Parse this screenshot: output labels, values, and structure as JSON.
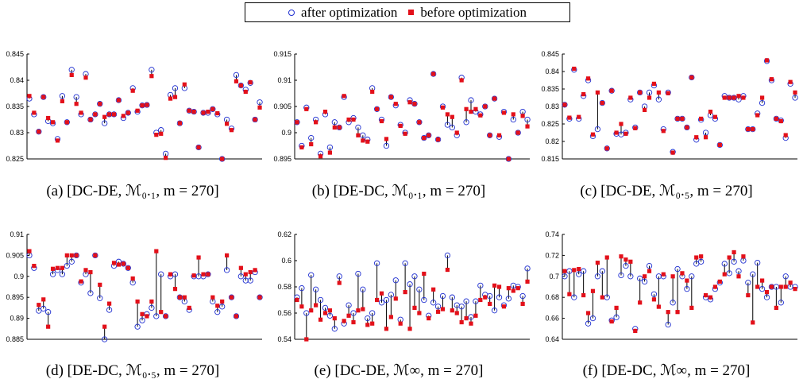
{
  "legend": {
    "after_label": "after optimization",
    "before_label": "before optimization",
    "after_color": "#1f2fd0",
    "before_color": "#e3101a"
  },
  "chart_data": [
    {
      "type": "scatter",
      "caption": "(a) [DC-DE, ℳ₀.₁, m = 270]",
      "ylim": [
        0.825,
        0.845
      ],
      "yticks": [
        "0.825",
        "0.83",
        "0.835",
        "0.84",
        "0.845"
      ],
      "x": [
        1,
        2,
        3,
        4,
        5,
        6,
        7,
        8,
        9,
        10,
        11,
        12,
        13,
        14,
        15,
        16,
        17,
        18,
        19,
        20,
        21,
        22,
        23,
        24,
        25,
        26,
        27,
        28,
        29,
        30,
        31,
        32,
        33,
        34,
        35,
        36,
        37,
        38,
        39,
        40,
        41,
        42,
        43,
        44,
        45,
        46,
        47,
        48,
        49,
        50
      ],
      "series": [
        {
          "name": "after optimization",
          "values": [
            0.8365,
            0.8335,
            0.8302,
            0.8368,
            0.8322,
            0.8318,
            0.8288,
            0.837,
            0.832,
            0.842,
            0.8368,
            0.8335,
            0.8412,
            0.8325,
            0.8335,
            0.8355,
            0.8318,
            0.8335,
            0.8335,
            0.8362,
            0.8328,
            0.8338,
            0.8385,
            0.834,
            0.8352,
            0.8353,
            0.842,
            0.83,
            0.8305,
            0.826,
            0.8372,
            0.8385,
            0.8318,
            0.8385,
            0.8342,
            0.834,
            0.8272,
            0.8338,
            0.8338,
            0.8345,
            0.8335,
            0.825,
            0.8325,
            0.8308,
            0.841,
            0.839,
            0.8382,
            0.8395,
            0.8325,
            0.8358
          ]
        },
        {
          "name": "before optimization",
          "values": [
            0.837,
            0.8338,
            0.8302,
            0.8368,
            0.8328,
            0.832,
            0.8285,
            0.836,
            0.832,
            0.841,
            0.8355,
            0.8338,
            0.8405,
            0.8325,
            0.8335,
            0.8355,
            0.833,
            0.8335,
            0.8335,
            0.8362,
            0.8332,
            0.8338,
            0.838,
            0.8342,
            0.8352,
            0.8353,
            0.8408,
            0.8296,
            0.8298,
            0.8252,
            0.8365,
            0.8368,
            0.8318,
            0.8392,
            0.8342,
            0.834,
            0.8272,
            0.8338,
            0.834,
            0.8345,
            0.8337,
            0.825,
            0.8317,
            0.8305,
            0.8398,
            0.839,
            0.8378,
            0.8396,
            0.8325,
            0.8348
          ]
        }
      ]
    },
    {
      "type": "scatter",
      "caption": "(b) [DE-DC, ℳ₀.₁, m = 270]",
      "ylim": [
        0.895,
        0.915
      ],
      "yticks": [
        "0.895",
        "0.9",
        "0.905",
        "0.91",
        "0.915"
      ],
      "x": [
        1,
        2,
        3,
        4,
        5,
        6,
        7,
        8,
        9,
        10,
        11,
        12,
        13,
        14,
        15,
        16,
        17,
        18,
        19,
        20,
        21,
        22,
        23,
        24,
        25,
        26,
        27,
        28,
        29,
        30,
        31,
        32,
        33,
        34,
        35,
        36,
        37,
        38,
        39,
        40,
        41,
        42,
        43,
        44,
        45,
        46,
        47,
        48,
        49,
        50
      ],
      "series": [
        {
          "name": "after optimization",
          "values": [
            0.902,
            0.8975,
            0.9048,
            0.899,
            0.9025,
            0.896,
            0.9035,
            0.8972,
            0.902,
            0.901,
            0.9068,
            0.902,
            0.9028,
            0.901,
            0.8995,
            0.8987,
            0.9085,
            0.9045,
            0.9025,
            0.8975,
            0.9068,
            0.9052,
            0.9015,
            0.9,
            0.9062,
            0.9055,
            0.902,
            0.899,
            0.8995,
            0.9112,
            0.8987,
            0.905,
            0.9015,
            0.901,
            0.8995,
            0.9105,
            0.902,
            0.9062,
            0.904,
            0.9035,
            0.905,
            0.8995,
            0.9065,
            0.8992,
            0.904,
            0.895,
            0.9025,
            0.9,
            0.904,
            0.9025
          ]
        },
        {
          "name": "before optimization",
          "values": [
            0.902,
            0.8972,
            0.9045,
            0.8978,
            0.902,
            0.8955,
            0.904,
            0.8962,
            0.901,
            0.901,
            0.907,
            0.9025,
            0.9025,
            0.8995,
            0.8985,
            0.8983,
            0.9078,
            0.9045,
            0.9022,
            0.8988,
            0.9068,
            0.9055,
            0.9013,
            0.8998,
            0.9058,
            0.9055,
            0.902,
            0.899,
            0.8995,
            0.9112,
            0.8987,
            0.9048,
            0.9035,
            0.903,
            0.9,
            0.91,
            0.9045,
            0.904,
            0.9045,
            0.9033,
            0.905,
            0.8995,
            0.9065,
            0.8995,
            0.9038,
            0.895,
            0.9035,
            0.9,
            0.9032,
            0.9012
          ]
        }
      ]
    },
    {
      "type": "scatter",
      "caption": "(c) [DC-DE, ℳ₀.₅, m = 270]",
      "ylim": [
        0.815,
        0.845
      ],
      "yticks": [
        "0.815",
        "0.82",
        "0.825",
        "0.83",
        "0.835",
        "0.84",
        "0.845"
      ],
      "x": [
        1,
        2,
        3,
        4,
        5,
        6,
        7,
        8,
        9,
        10,
        11,
        12,
        13,
        14,
        15,
        16,
        17,
        18,
        19,
        20,
        21,
        22,
        23,
        24,
        25,
        26,
        27,
        28,
        29,
        30,
        31,
        32,
        33,
        34,
        35,
        36,
        37,
        38,
        39,
        40,
        41,
        42,
        43,
        44,
        45,
        46,
        47,
        48,
        49,
        50
      ],
      "series": [
        {
          "name": "after optimization",
          "values": [
            0.8305,
            0.8265,
            0.8405,
            0.8265,
            0.833,
            0.8375,
            0.8215,
            0.8235,
            0.831,
            0.818,
            0.8345,
            0.8222,
            0.822,
            0.8225,
            0.832,
            0.824,
            0.834,
            0.83,
            0.834,
            0.836,
            0.832,
            0.8235,
            0.834,
            0.817,
            0.8265,
            0.8265,
            0.824,
            0.8383,
            0.8205,
            0.8262,
            0.8225,
            0.8275,
            0.8265,
            0.819,
            0.833,
            0.8325,
            0.8325,
            0.832,
            0.833,
            0.8235,
            0.8235,
            0.828,
            0.831,
            0.843,
            0.8375,
            0.8265,
            0.826,
            0.821,
            0.8365,
            0.8325
          ]
        },
        {
          "name": "before optimization",
          "values": [
            0.8305,
            0.8268,
            0.8408,
            0.827,
            0.8335,
            0.838,
            0.822,
            0.834,
            0.831,
            0.818,
            0.8345,
            0.8225,
            0.825,
            0.8222,
            0.8325,
            0.8238,
            0.834,
            0.829,
            0.8325,
            0.8365,
            0.834,
            0.823,
            0.8338,
            0.8168,
            0.8265,
            0.8265,
            0.824,
            0.8383,
            0.8212,
            0.8265,
            0.8212,
            0.8285,
            0.827,
            0.819,
            0.8325,
            0.8325,
            0.8325,
            0.833,
            0.8325,
            0.8235,
            0.8235,
            0.8275,
            0.8325,
            0.8432,
            0.8378,
            0.8265,
            0.8258,
            0.8218,
            0.837,
            0.834
          ]
        }
      ]
    },
    {
      "type": "scatter",
      "caption": "(d) [DE-DC, ℳ₀.₅, m = 270]",
      "ylim": [
        0.885,
        0.91
      ],
      "yticks": [
        "0.885",
        "0.89",
        "0.895",
        "0.9",
        "0.905",
        "0.91"
      ],
      "x": [
        1,
        2,
        3,
        4,
        5,
        6,
        7,
        8,
        9,
        10,
        11,
        12,
        13,
        14,
        15,
        16,
        17,
        18,
        19,
        20,
        21,
        22,
        23,
        24,
        25,
        26,
        27,
        28,
        29,
        30,
        31,
        32,
        33,
        34,
        35,
        36,
        37,
        38,
        39,
        40,
        41,
        42,
        43,
        44,
        45,
        46,
        47,
        48,
        49,
        50
      ],
      "series": [
        {
          "name": "after optimization",
          "values": [
            0.905,
            0.902,
            0.8918,
            0.8923,
            0.8915,
            0.9005,
            0.9015,
            0.9005,
            0.9025,
            0.9035,
            0.905,
            0.8985,
            0.9005,
            0.896,
            0.905,
            0.8948,
            0.885,
            0.892,
            0.9025,
            0.9035,
            0.903,
            0.902,
            0.8985,
            0.888,
            0.8895,
            0.891,
            0.8925,
            0.8905,
            0.9005,
            0.8905,
            0.9,
            0.9005,
            0.895,
            0.894,
            0.892,
            0.9,
            0.9,
            0.9,
            0.9005,
            0.894,
            0.8915,
            0.8928,
            0.9015,
            0.895,
            0.8905,
            0.9,
            0.899,
            0.899,
            0.901,
            0.895
          ]
        },
        {
          "name": "before optimization",
          "values": [
            0.906,
            0.9025,
            0.8932,
            0.8945,
            0.888,
            0.9018,
            0.902,
            0.902,
            0.905,
            0.905,
            0.905,
            0.8988,
            0.9015,
            0.901,
            0.905,
            0.898,
            0.888,
            0.8935,
            0.9032,
            0.9028,
            0.903,
            0.902,
            0.8995,
            0.894,
            0.891,
            0.8905,
            0.894,
            0.906,
            0.8915,
            0.8905,
            0.9005,
            0.897,
            0.895,
            0.895,
            0.8925,
            0.9002,
            0.9045,
            0.9005,
            0.9005,
            0.895,
            0.893,
            0.894,
            0.905,
            0.895,
            0.8905,
            0.902,
            0.9005,
            0.901,
            0.9015,
            0.895
          ]
        }
      ]
    },
    {
      "type": "scatter",
      "caption": "(e) [DC-DE, ℳ∞, m = 270]",
      "ylim": [
        0.54,
        0.62
      ],
      "yticks": [
        "0.54",
        "0.56",
        "0.58",
        "0.6",
        "0.62"
      ],
      "x": [
        1,
        2,
        3,
        4,
        5,
        6,
        7,
        8,
        9,
        10,
        11,
        12,
        13,
        14,
        15,
        16,
        17,
        18,
        19,
        20,
        21,
        22,
        23,
        24,
        25,
        26,
        27,
        28,
        29,
        30,
        31,
        32,
        33,
        34,
        35,
        36,
        37,
        38,
        39,
        40,
        41,
        42,
        43,
        44,
        45,
        46,
        47,
        48,
        49,
        50
      ],
      "series": [
        {
          "name": "after optimization",
          "values": [
            0.572,
            0.579,
            0.56,
            0.589,
            0.578,
            0.57,
            0.564,
            0.558,
            0.548,
            0.588,
            0.552,
            0.566,
            0.56,
            0.59,
            0.578,
            0.556,
            0.56,
            0.598,
            0.568,
            0.57,
            0.574,
            0.585,
            0.555,
            0.598,
            0.582,
            0.588,
            0.578,
            0.57,
            0.558,
            0.568,
            0.565,
            0.573,
            0.604,
            0.572,
            0.566,
            0.565,
            0.569,
            0.557,
            0.569,
            0.581,
            0.574,
            0.573,
            0.562,
            0.572,
            0.566,
            0.571,
            0.581,
            0.58,
            0.573,
            0.594
          ]
        },
        {
          "name": "before optimization",
          "values": [
            0.57,
            0.565,
            0.54,
            0.562,
            0.566,
            0.555,
            0.56,
            0.562,
            0.556,
            0.583,
            0.554,
            0.558,
            0.553,
            0.562,
            0.563,
            0.551,
            0.552,
            0.57,
            0.575,
            0.548,
            0.557,
            0.571,
            0.552,
            0.576,
            0.548,
            0.564,
            0.56,
            0.59,
            0.556,
            0.578,
            0.561,
            0.563,
            0.593,
            0.562,
            0.56,
            0.553,
            0.556,
            0.552,
            0.558,
            0.57,
            0.572,
            0.567,
            0.581,
            0.58,
            0.565,
            0.579,
            0.577,
            0.579,
            0.567,
            0.584
          ]
        }
      ]
    },
    {
      "type": "scatter",
      "caption": "(f) [DE-DC, ℳ∞, m = 270]",
      "ylim": [
        0.64,
        0.74
      ],
      "yticks": [
        "0.64",
        "0.66",
        "0.68",
        "0.7",
        "0.72",
        "0.74"
      ],
      "x": [
        1,
        2,
        3,
        4,
        5,
        6,
        7,
        8,
        9,
        10,
        11,
        12,
        13,
        14,
        15,
        16,
        17,
        18,
        19,
        20,
        21,
        22,
        23,
        24,
        25,
        26,
        27,
        28,
        29,
        30,
        31,
        32,
        33,
        34,
        35,
        36,
        37,
        38,
        39,
        40,
        41,
        42,
        43,
        44,
        45,
        46,
        47,
        48,
        49,
        50
      ],
      "series": [
        {
          "name": "after optimization",
          "values": [
            0.7,
            0.705,
            0.68,
            0.702,
            0.705,
            0.655,
            0.66,
            0.7,
            0.705,
            0.68,
            0.658,
            0.661,
            0.701,
            0.71,
            0.7,
            0.65,
            0.698,
            0.695,
            0.71,
            0.683,
            0.7,
            0.7,
            0.654,
            0.675,
            0.707,
            0.7,
            0.688,
            0.7,
            0.712,
            0.714,
            0.68,
            0.678,
            0.688,
            0.694,
            0.712,
            0.703,
            0.714,
            0.705,
            0.715,
            0.694,
            0.702,
            0.713,
            0.688,
            0.68,
            0.69,
            0.69,
            0.675,
            0.7,
            0.69,
            0.69
          ]
        },
        {
          "name": "before optimization",
          "values": [
            0.705,
            0.683,
            0.706,
            0.707,
            0.682,
            0.665,
            0.686,
            0.713,
            0.68,
            0.718,
            0.657,
            0.67,
            0.719,
            0.716,
            0.714,
            0.648,
            0.675,
            0.7,
            0.705,
            0.678,
            0.671,
            0.702,
            0.666,
            0.7,
            0.666,
            0.703,
            0.696,
            0.67,
            0.718,
            0.719,
            0.682,
            0.68,
            0.69,
            0.695,
            0.702,
            0.718,
            0.723,
            0.7,
            0.719,
            0.682,
            0.656,
            0.69,
            0.696,
            0.685,
            0.69,
            0.67,
            0.69,
            0.69,
            0.694,
            0.688
          ]
        }
      ]
    }
  ]
}
